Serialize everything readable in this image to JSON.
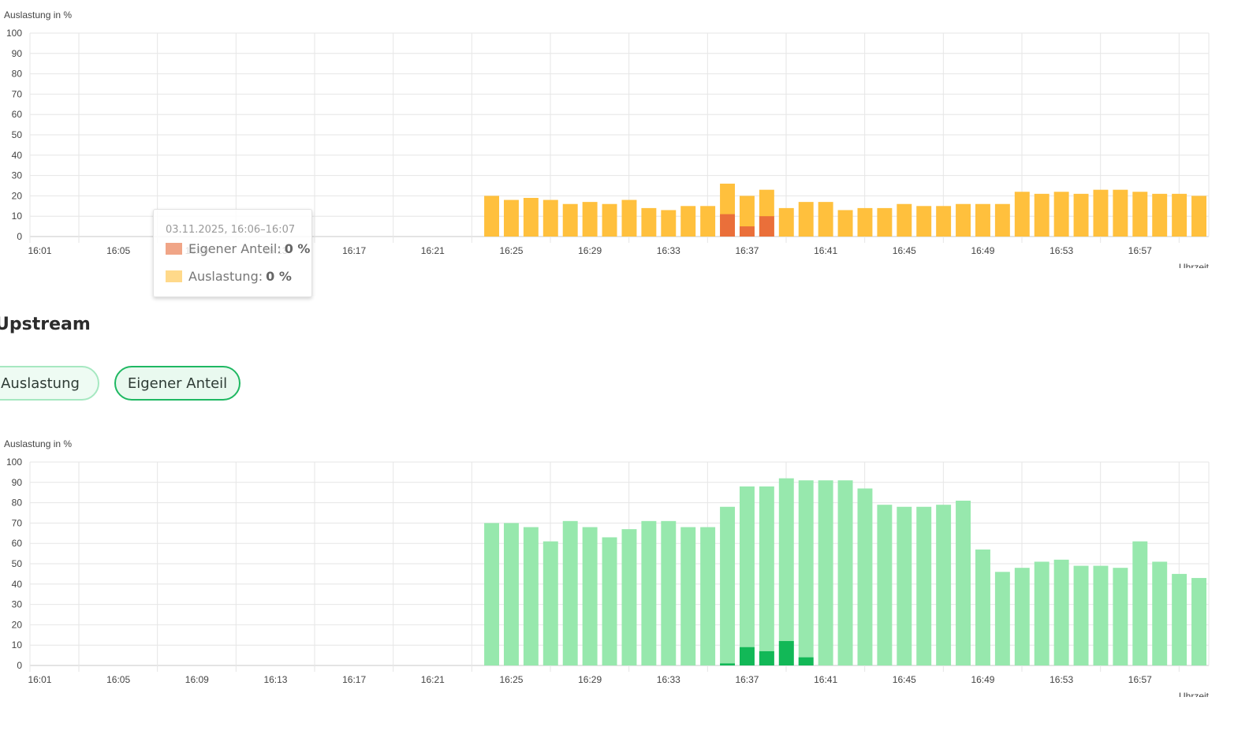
{
  "tooltip": {
    "date": "03.11.2025, 16:06–16:07",
    "items": [
      {
        "label": "Eigener Anteil:",
        "value": "0 %",
        "color": "#f0a587"
      },
      {
        "label": "Auslastung:",
        "value": "0 %",
        "color": "#ffd98a"
      }
    ]
  },
  "upstream": {
    "title": "Upstream",
    "buttons": {
      "auslastung": "Auslastung",
      "eigener": "Eigener Anteil"
    }
  },
  "chart_data": [
    {
      "type": "bar",
      "stacked": "overlay",
      "ylabel": "Auslastung in %",
      "xlabel": "Uhrzeit",
      "ylim": [
        0,
        100
      ],
      "yticks": [
        0,
        10,
        20,
        30,
        40,
        50,
        60,
        70,
        80,
        90,
        100
      ],
      "x_tick_labels": [
        "16:01",
        "16:05",
        "16:09",
        "16:13",
        "16:17",
        "16:21",
        "16:25",
        "16:29",
        "16:33",
        "16:37",
        "16:41",
        "16:45",
        "16:49",
        "16:53",
        "16:57"
      ],
      "x_minutes": [
        1,
        60
      ],
      "grid": true,
      "series": [
        {
          "name": "Auslastung",
          "color": "#ffc03d",
          "x_start": 24,
          "values": [
            20,
            18,
            19,
            18,
            16,
            17,
            16,
            18,
            14,
            13,
            15,
            15,
            26,
            20,
            23,
            14,
            17,
            17,
            13,
            14,
            14,
            16,
            15,
            15,
            16,
            16,
            16,
            22,
            21,
            22,
            21,
            23,
            23,
            22,
            21,
            21,
            20
          ]
        },
        {
          "name": "Eigener Anteil",
          "color": "#ea6f3a",
          "x_start": 36,
          "values": [
            11,
            5,
            10
          ]
        }
      ]
    },
    {
      "type": "bar",
      "stacked": "overlay",
      "ylabel": "Auslastung in %",
      "xlabel": "Uhrzeit",
      "ylim": [
        0,
        100
      ],
      "yticks": [
        0,
        10,
        20,
        30,
        40,
        50,
        60,
        70,
        80,
        90,
        100
      ],
      "x_tick_labels": [
        "16:01",
        "16:05",
        "16:09",
        "16:13",
        "16:17",
        "16:21",
        "16:25",
        "16:29",
        "16:33",
        "16:37",
        "16:41",
        "16:45",
        "16:49",
        "16:53",
        "16:57"
      ],
      "x_minutes": [
        1,
        60
      ],
      "grid": true,
      "series": [
        {
          "name": "Auslastung",
          "color": "#97e8ad",
          "x_start": 24,
          "values": [
            70,
            70,
            68,
            61,
            71,
            68,
            63,
            67,
            71,
            71,
            68,
            68,
            78,
            88,
            88,
            92,
            91,
            91,
            91,
            87,
            79,
            78,
            78,
            79,
            81,
            57,
            46,
            48,
            51,
            52,
            49,
            49,
            48,
            61,
            51,
            45,
            43
          ]
        },
        {
          "name": "Eigener Anteil",
          "color": "#12b857",
          "x_start": 36,
          "values": [
            1,
            9,
            7,
            12,
            4
          ]
        }
      ]
    }
  ]
}
